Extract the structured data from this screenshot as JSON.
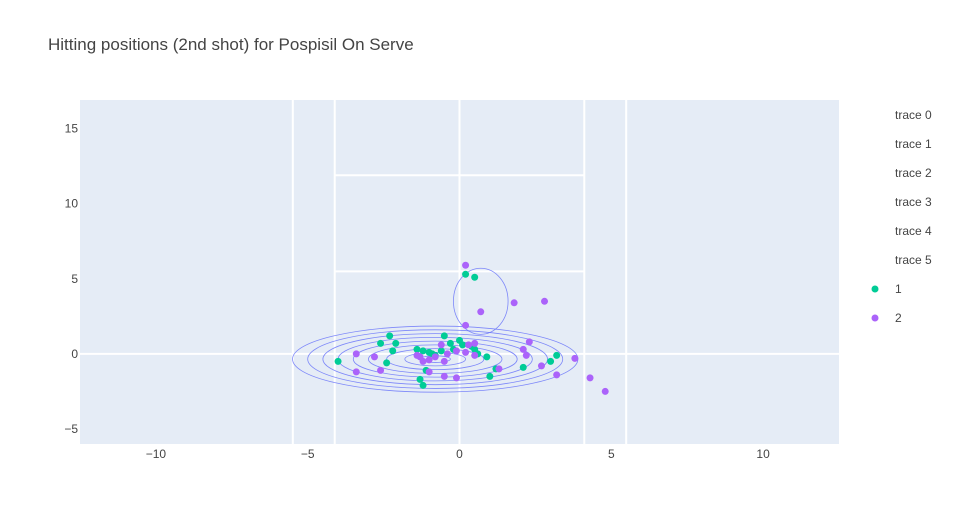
{
  "chart_data": {
    "type": "scatter",
    "title": "Hitting positions (2nd shot) for Pospisil On Serve",
    "xlabel": "",
    "ylabel": "",
    "xlim": [
      -12.5,
      12.5
    ],
    "ylim": [
      -6,
      16.9
    ],
    "x_ticks": [
      -10,
      -5,
      0,
      5,
      10
    ],
    "y_ticks": [
      -5,
      0,
      5,
      10,
      15
    ],
    "x_tick_labels": [
      "−10",
      "−5",
      "0",
      "5",
      "10"
    ],
    "y_tick_labels": [
      "−5",
      "0",
      "5",
      "10",
      "15"
    ],
    "grid": false,
    "background_color": "#e5ecf6",
    "court_line_color": "#ffffff",
    "court_lines": [
      {
        "name": "trace 0",
        "x": [
          -5.49,
          -5.49
        ],
        "y": [
          -6,
          16.9
        ]
      },
      {
        "name": "trace 1",
        "x": [
          5.49,
          5.49
        ],
        "y": [
          -6,
          16.9
        ]
      },
      {
        "name": "trace 2",
        "x": [
          -4.11,
          -4.11
        ],
        "y": [
          -6,
          16.9
        ]
      },
      {
        "name": "trace 3",
        "x": [
          4.11,
          4.11
        ],
        "y": [
          -6,
          16.9
        ]
      },
      {
        "name": "trace 4",
        "x": [
          -4.11,
          4.11
        ],
        "y": [
          5.49,
          5.49
        ]
      },
      {
        "name": "trace 5",
        "x": [
          -4.11,
          4.11
        ],
        "y": [
          11.89,
          11.89
        ]
      },
      {
        "name": "baseline",
        "x": [
          -12.5,
          12.5
        ],
        "y": [
          0,
          0
        ]
      },
      {
        "name": "center-line",
        "x": [
          0,
          0
        ],
        "y": [
          -6,
          16.9
        ]
      }
    ],
    "density_contour": {
      "color": "#636efa",
      "center": [
        -0.8,
        -0.35
      ],
      "levels": [
        {
          "rx": 4.7,
          "ry": 2.2
        },
        {
          "rx": 4.2,
          "ry": 1.95
        },
        {
          "rx": 3.7,
          "ry": 1.7
        },
        {
          "rx": 3.2,
          "ry": 1.45
        },
        {
          "rx": 2.7,
          "ry": 1.2
        },
        {
          "rx": 2.2,
          "ry": 0.95
        },
        {
          "rx": 1.6,
          "ry": 0.7
        },
        {
          "rx": 1.0,
          "ry": 0.45
        },
        {
          "rx": 0.5,
          "ry": 0.22
        }
      ],
      "outer_lobe": {
        "center": [
          0.7,
          3.5
        ],
        "rx": 0.9,
        "ry": 2.2
      }
    },
    "legend": {
      "placement": "right",
      "entries": [
        "trace 0",
        "trace 1",
        "trace 2",
        "trace 3",
        "trace 4",
        "trace 5",
        "1",
        "2"
      ]
    },
    "series": [
      {
        "name": "1",
        "color": "#00cc96",
        "points": [
          [
            0.2,
            5.3
          ],
          [
            0.5,
            5.1
          ],
          [
            -4.0,
            -0.5
          ],
          [
            -2.3,
            1.2
          ],
          [
            -2.6,
            0.7
          ],
          [
            -2.1,
            0.7
          ],
          [
            -2.2,
            0.2
          ],
          [
            -1.4,
            0.3
          ],
          [
            -1.2,
            0.2
          ],
          [
            -1.0,
            0.1
          ],
          [
            -0.8,
            -0.1
          ],
          [
            -0.6,
            0.2
          ],
          [
            -0.5,
            1.2
          ],
          [
            -0.3,
            0.7
          ],
          [
            0.0,
            0.9
          ],
          [
            0.1,
            0.6
          ],
          [
            0.4,
            0.5
          ],
          [
            0.5,
            0.3
          ],
          [
            0.6,
            0.0
          ],
          [
            0.9,
            -0.2
          ],
          [
            -1.1,
            -1.1
          ],
          [
            -1.3,
            -1.7
          ],
          [
            -1.2,
            -2.1
          ],
          [
            -2.4,
            -0.6
          ],
          [
            -0.9,
            0.0
          ],
          [
            1.0,
            -1.5
          ],
          [
            1.2,
            -1.0
          ],
          [
            2.1,
            -0.9
          ],
          [
            3.0,
            -0.5
          ],
          [
            3.2,
            -0.1
          ],
          [
            -0.2,
            0.3
          ]
        ]
      },
      {
        "name": "2",
        "color": "#ab63fa",
        "points": [
          [
            0.2,
            5.9
          ],
          [
            1.8,
            3.4
          ],
          [
            2.8,
            3.5
          ],
          [
            0.7,
            2.8
          ],
          [
            0.2,
            1.9
          ],
          [
            2.3,
            0.8
          ],
          [
            2.1,
            0.3
          ],
          [
            2.2,
            -0.1
          ],
          [
            2.7,
            -0.8
          ],
          [
            3.2,
            -1.4
          ],
          [
            3.8,
            -0.3
          ],
          [
            4.3,
            -1.6
          ],
          [
            4.8,
            -2.5
          ],
          [
            -3.4,
            0.0
          ],
          [
            -3.4,
            -1.2
          ],
          [
            -2.8,
            -0.2
          ],
          [
            -2.6,
            -1.1
          ],
          [
            -1.4,
            -0.1
          ],
          [
            -1.2,
            -0.5
          ],
          [
            -1.0,
            -0.4
          ],
          [
            -0.8,
            -0.2
          ],
          [
            -0.6,
            0.6
          ],
          [
            -0.4,
            0.0
          ],
          [
            -0.1,
            0.2
          ],
          [
            0.3,
            0.6
          ],
          [
            0.5,
            0.7
          ],
          [
            0.2,
            0.1
          ],
          [
            -0.5,
            -0.5
          ],
          [
            -1.0,
            -1.2
          ],
          [
            -0.5,
            -1.5
          ],
          [
            -0.1,
            -1.6
          ],
          [
            1.3,
            -1.0
          ],
          [
            0.5,
            -0.1
          ],
          [
            -1.3,
            -0.2
          ]
        ]
      }
    ]
  }
}
